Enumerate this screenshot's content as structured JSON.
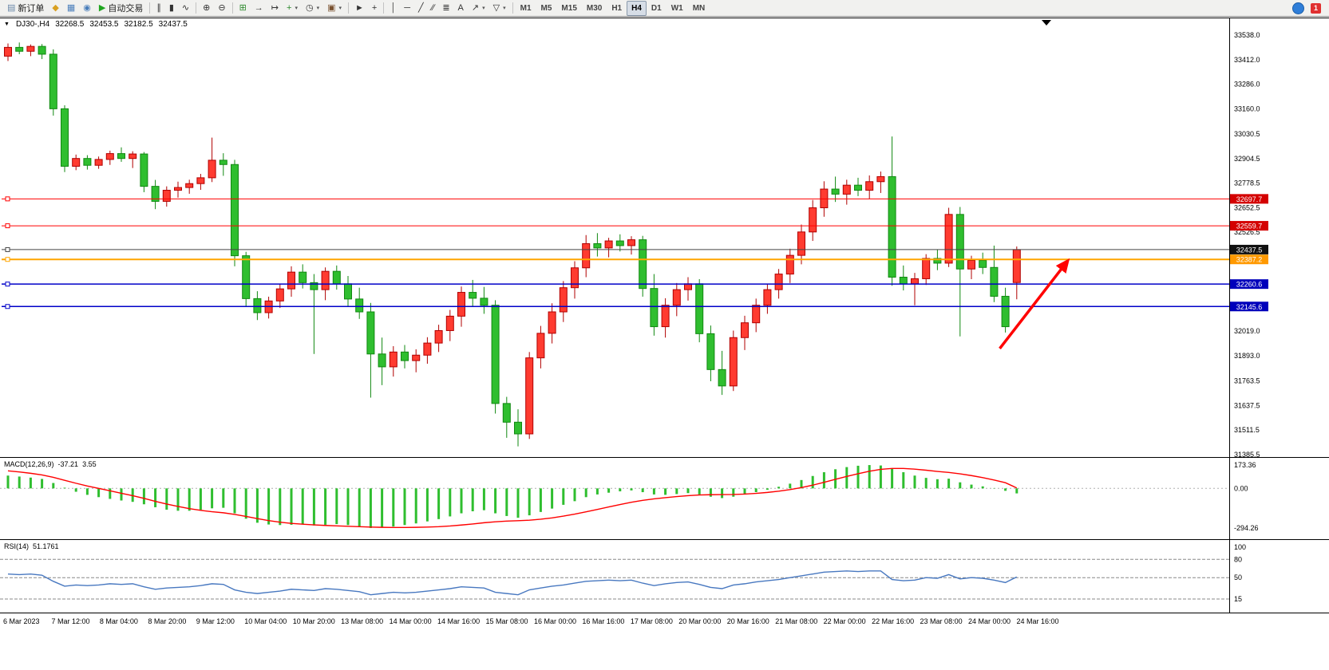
{
  "toolbar": {
    "new_order_label": "新订单",
    "auto_trading_label": "自动交易",
    "timeframes": [
      "M1",
      "M5",
      "M15",
      "M30",
      "H1",
      "H4",
      "D1",
      "W1",
      "MN"
    ],
    "active_timeframe": "H4",
    "notification_count": "1",
    "icons": {
      "dropdown": "▾"
    },
    "buttons": [
      {
        "type": "button",
        "name": "new-order-button",
        "glyph": "▤",
        "color": "#6a87a8",
        "label": "新订单"
      },
      {
        "type": "icon",
        "name": "market-watch-button",
        "glyph": "◆",
        "color": "#d9a021"
      },
      {
        "type": "icon",
        "name": "chart-window-button",
        "glyph": "▦",
        "color": "#4a7ebb"
      },
      {
        "type": "icon",
        "name": "profiles-button",
        "glyph": "◉",
        "color": "#4a7ebb"
      },
      {
        "type": "button",
        "name": "auto-trading-button",
        "glyph": "▶",
        "color": "#1fa51f",
        "label": "自动交易"
      },
      {
        "type": "sep"
      },
      {
        "type": "icon",
        "name": "bar-chart-button",
        "glyph": "∥",
        "color": "#333333"
      },
      {
        "type": "icon",
        "name": "candlestick-chart-button",
        "glyph": "▮",
        "color": "#333333"
      },
      {
        "type": "icon",
        "name": "line-chart-button",
        "glyph": "∿",
        "color": "#333333"
      },
      {
        "type": "sep"
      },
      {
        "type": "icon",
        "name": "zoom-in-button",
        "glyph": "⊕",
        "color": "#333333"
      },
      {
        "type": "icon",
        "name": "zoom-out-button",
        "glyph": "⊖",
        "color": "#333333"
      },
      {
        "type": "sep"
      },
      {
        "type": "icon",
        "name": "tile-windows-button",
        "glyph": "⊞",
        "color": "#2e8b2e"
      },
      {
        "type": "icon",
        "name": "auto-scroll-button",
        "glyph": "→",
        "color": "#333333"
      },
      {
        "type": "icon",
        "name": "chart-shift-button",
        "glyph": "↦",
        "color": "#333333"
      },
      {
        "type": "icon",
        "name": "indicators-button",
        "glyph": "+",
        "color": "#2e8b2e",
        "dropdown": true
      },
      {
        "type": "icon",
        "name": "periods-button",
        "glyph": "◷",
        "color": "#333333",
        "dropdown": true
      },
      {
        "type": "icon",
        "name": "templates-button",
        "glyph": "▣",
        "color": "#7a5230",
        "dropdown": true
      },
      {
        "type": "sep"
      },
      {
        "type": "icon",
        "name": "cursor-button",
        "glyph": "►",
        "color": "#333333"
      },
      {
        "type": "icon",
        "name": "crosshair-button",
        "glyph": "+",
        "color": "#333333"
      },
      {
        "type": "sep"
      },
      {
        "type": "icon",
        "name": "vertical-line-button",
        "glyph": "│",
        "color": "#333333"
      },
      {
        "type": "icon",
        "name": "horizontal-line-button",
        "glyph": "─",
        "color": "#333333"
      },
      {
        "type": "icon",
        "name": "trendline-button",
        "glyph": "╱",
        "color": "#333333"
      },
      {
        "type": "icon",
        "name": "channel-button",
        "glyph": "∕∕",
        "color": "#333333"
      },
      {
        "type": "icon",
        "name": "fibonacci-button",
        "glyph": "≣",
        "color": "#333333"
      },
      {
        "type": "icon",
        "name": "text-button",
        "glyph": "A",
        "color": "#333333"
      },
      {
        "type": "icon",
        "name": "arrows-button",
        "glyph": "↗",
        "color": "#333333",
        "dropdown": true
      },
      {
        "type": "icon",
        "name": "shapes-button",
        "glyph": "▽",
        "color": "#333333",
        "dropdown": true
      },
      {
        "type": "sep"
      }
    ]
  },
  "chart": {
    "symbol": "DJ30-,H4",
    "open": "32268.5",
    "high": "32453.5",
    "low": "32182.5",
    "close": "32437.5",
    "macd_label": "MACD(12,26,9)",
    "macd_main": "-37.21",
    "macd_signal_value": "3.55",
    "rsi_label": "RSI(14)",
    "rsi_value": "51.1761"
  },
  "chart_data": {
    "type": "candlestick",
    "symbol": "DJ30-",
    "timeframe": "H4",
    "price_range": {
      "top": 33538.0,
      "bottom": 31385.5
    },
    "colors": {
      "up_fill": "#ff3b30",
      "up_border": "#b00000",
      "down_fill": "#2fbe2f",
      "down_border": "#118811",
      "macd_hist": "#2fbe2f",
      "macd_signal": "#ff0000",
      "rsi_line": "#4878c0"
    },
    "y_ticks": [
      {
        "label": "33538.0",
        "value": 33538.0
      },
      {
        "label": "33412.0",
        "value": 33412.0
      },
      {
        "label": "33286.0",
        "value": 33286.0
      },
      {
        "label": "33160.0",
        "value": 33160.0
      },
      {
        "label": "33030.5",
        "value": 33030.5
      },
      {
        "label": "32904.5",
        "value": 32904.5
      },
      {
        "label": "32778.5",
        "value": 32778.5
      },
      {
        "label": "32652.5",
        "value": 32652.5
      },
      {
        "label": "32526.5",
        "value": 32526.5
      },
      {
        "label": "32019.0",
        "value": 32019.0
      },
      {
        "label": "31893.0",
        "value": 31893.0
      },
      {
        "label": "31763.5",
        "value": 31763.5
      },
      {
        "label": "31637.5",
        "value": 31637.5
      },
      {
        "label": "31511.5",
        "value": 31511.5
      },
      {
        "label": "31385.5",
        "value": 31385.5
      }
    ],
    "price_levels": [
      {
        "price": 32697.7,
        "label": "32697.7",
        "color": "#ff0000",
        "badge": "#d40000",
        "width": 1
      },
      {
        "price": 32559.7,
        "label": "32559.7",
        "color": "#ff0000",
        "badge": "#d40000",
        "width": 1
      },
      {
        "price": 32437.5,
        "label": "32437.5",
        "color": "#444444",
        "badge": "#111111",
        "width": 1
      },
      {
        "price": 32387.2,
        "label": "32387.2",
        "color": "#ffa500",
        "badge": "#ff9900",
        "width": 2
      },
      {
        "price": 32260.6,
        "label": "32260.6",
        "color": "#0000c8",
        "badge": "#0000bb",
        "width": 1.5
      },
      {
        "price": 32145.6,
        "label": "32145.6",
        "color": "#0000c8",
        "badge": "#0000bb",
        "width": 1.5
      }
    ],
    "x_labels": [
      "6 Mar 2023",
      "7 Mar 12:00",
      "8 Mar 04:00",
      "8 Mar 20:00",
      "9 Mar 12:00",
      "10 Mar 04:00",
      "10 Mar 20:00",
      "13 Mar 08:00",
      "14 Mar 00:00",
      "14 Mar 16:00",
      "15 Mar 08:00",
      "16 Mar 00:00",
      "16 Mar 16:00",
      "17 Mar 08:00",
      "20 Mar 00:00",
      "20 Mar 16:00",
      "21 Mar 08:00",
      "22 Mar 00:00",
      "22 Mar 16:00",
      "23 Mar 08:00",
      "24 Mar 00:00",
      "24 Mar 16:00"
    ],
    "candles": [
      [
        33430,
        33495,
        33405,
        33475
      ],
      [
        33475,
        33500,
        33440,
        33455
      ],
      [
        33455,
        33490,
        33430,
        33480
      ],
      [
        33480,
        33492,
        33415,
        33440
      ],
      [
        33440,
        33465,
        33125,
        33160
      ],
      [
        33160,
        33178,
        32835,
        32865
      ],
      [
        32865,
        32925,
        32845,
        32905
      ],
      [
        32905,
        32922,
        32848,
        32870
      ],
      [
        32870,
        32915,
        32852,
        32900
      ],
      [
        32900,
        32945,
        32872,
        32930
      ],
      [
        32930,
        32962,
        32888,
        32905
      ],
      [
        32905,
        32942,
        32856,
        32928
      ],
      [
        32928,
        32938,
        32732,
        32762
      ],
      [
        32762,
        32795,
        32645,
        32685
      ],
      [
        32685,
        32762,
        32658,
        32742
      ],
      [
        32742,
        32786,
        32704,
        32756
      ],
      [
        32756,
        32796,
        32724,
        32776
      ],
      [
        32776,
        32826,
        32744,
        32806
      ],
      [
        32806,
        33012,
        32784,
        32896
      ],
      [
        32896,
        32932,
        32816,
        32874
      ],
      [
        32874,
        32898,
        32352,
        32406
      ],
      [
        32406,
        32426,
        32148,
        32186
      ],
      [
        32186,
        32224,
        32076,
        32114
      ],
      [
        32114,
        32196,
        32084,
        32174
      ],
      [
        32174,
        32262,
        32138,
        32236
      ],
      [
        32236,
        32352,
        32196,
        32322
      ],
      [
        32322,
        32362,
        32238,
        32268
      ],
      [
        32268,
        32312,
        31902,
        32232
      ],
      [
        32232,
        32346,
        32178,
        32326
      ],
      [
        32326,
        32356,
        32232,
        32262
      ],
      [
        32262,
        32302,
        32148,
        32184
      ],
      [
        32184,
        32242,
        32082,
        32118
      ],
      [
        32118,
        32164,
        31678,
        31902
      ],
      [
        31902,
        31986,
        31742,
        31836
      ],
      [
        31836,
        31942,
        31786,
        31912
      ],
      [
        31912,
        31948,
        31828,
        31868
      ],
      [
        31868,
        31926,
        31808,
        31896
      ],
      [
        31896,
        31988,
        31852,
        31958
      ],
      [
        31958,
        32052,
        31912,
        32022
      ],
      [
        32022,
        32128,
        31968,
        32096
      ],
      [
        32096,
        32248,
        32042,
        32218
      ],
      [
        32218,
        32282,
        32146,
        32188
      ],
      [
        32188,
        32246,
        32108,
        32152
      ],
      [
        32152,
        32178,
        31596,
        31648
      ],
      [
        31648,
        31682,
        31472,
        31552
      ],
      [
        31552,
        31618,
        31428,
        31492
      ],
      [
        31492,
        31912,
        31466,
        31882
      ],
      [
        31882,
        32046,
        31828,
        32008
      ],
      [
        32008,
        32162,
        31956,
        32118
      ],
      [
        32118,
        32276,
        32066,
        32242
      ],
      [
        32242,
        32378,
        32186,
        32344
      ],
      [
        32344,
        32512,
        32296,
        32468
      ],
      [
        32468,
        32522,
        32402,
        32446
      ],
      [
        32446,
        32498,
        32398,
        32482
      ],
      [
        32482,
        32516,
        32428,
        32458
      ],
      [
        32458,
        32506,
        32412,
        32488
      ],
      [
        32488,
        32508,
        32196,
        32238
      ],
      [
        32238,
        32312,
        31996,
        32042
      ],
      [
        32042,
        32188,
        31986,
        32152
      ],
      [
        32152,
        32266,
        32096,
        32232
      ],
      [
        32232,
        32296,
        32176,
        32262
      ],
      [
        32262,
        32286,
        31962,
        32006
      ],
      [
        32006,
        32048,
        31762,
        31822
      ],
      [
        31822,
        31918,
        31692,
        31738
      ],
      [
        31738,
        32022,
        31712,
        31986
      ],
      [
        31986,
        32098,
        31922,
        32062
      ],
      [
        32062,
        32186,
        32014,
        32152
      ],
      [
        32152,
        32262,
        32108,
        32232
      ],
      [
        32232,
        32338,
        32186,
        32312
      ],
      [
        32312,
        32442,
        32266,
        32408
      ],
      [
        32408,
        32566,
        32362,
        32528
      ],
      [
        32528,
        32692,
        32482,
        32652
      ],
      [
        32652,
        32788,
        32606,
        32748
      ],
      [
        32748,
        32812,
        32682,
        32722
      ],
      [
        32722,
        32796,
        32668,
        32768
      ],
      [
        32768,
        32806,
        32712,
        32742
      ],
      [
        32742,
        32818,
        32698,
        32786
      ],
      [
        32786,
        32838,
        32728,
        32812
      ],
      [
        32812,
        33018,
        32252,
        32296
      ],
      [
        32296,
        32356,
        32228,
        32262
      ],
      [
        32262,
        32318,
        32152,
        32288
      ],
      [
        32288,
        32414,
        32256,
        32392
      ],
      [
        32392,
        32438,
        32332,
        32368
      ],
      [
        32368,
        32652,
        32348,
        32618
      ],
      [
        32618,
        32656,
        31992,
        32338
      ],
      [
        32338,
        32406,
        32286,
        32382
      ],
      [
        32382,
        32422,
        32312,
        32346
      ],
      [
        32346,
        32458,
        32168,
        32198
      ],
      [
        32198,
        32242,
        32012,
        32042
      ],
      [
        32268.5,
        32453.5,
        32182.5,
        32437.5
      ]
    ],
    "macd": {
      "axis": [
        173.36,
        0,
        -294.26
      ],
      "axis_labels": [
        "173.36",
        "0.00",
        "-294.26"
      ],
      "histogram": [
        95,
        88,
        80,
        70,
        40,
        5,
        -25,
        -48,
        -65,
        -78,
        -90,
        -100,
        -118,
        -140,
        -158,
        -166,
        -166,
        -160,
        -148,
        -144,
        -185,
        -225,
        -255,
        -268,
        -272,
        -270,
        -268,
        -275,
        -270,
        -265,
        -272,
        -282,
        -294,
        -290,
        -283,
        -272,
        -260,
        -245,
        -228,
        -208,
        -185,
        -170,
        -162,
        -185,
        -205,
        -218,
        -200,
        -175,
        -150,
        -122,
        -95,
        -65,
        -45,
        -32,
        -22,
        -15,
        -28,
        -45,
        -48,
        -42,
        -35,
        -45,
        -62,
        -72,
        -62,
        -45,
        -28,
        -10,
        12,
        35,
        62,
        92,
        120,
        142,
        158,
        168,
        173,
        170,
        148,
        120,
        95,
        78,
        68,
        72,
        45,
        28,
        15,
        2,
        -18,
        -37.21
      ],
      "signal": [
        130,
        122,
        112,
        100,
        82,
        60,
        38,
        18,
        0,
        -18,
        -36,
        -54,
        -74,
        -96,
        -116,
        -134,
        -150,
        -163,
        -173,
        -181,
        -193,
        -208,
        -224,
        -239,
        -251,
        -260,
        -266,
        -271,
        -275,
        -278,
        -281,
        -284,
        -287,
        -289,
        -290,
        -290,
        -289,
        -287,
        -284,
        -279,
        -272,
        -264,
        -255,
        -248,
        -243,
        -240,
        -236,
        -229,
        -219,
        -206,
        -191,
        -174,
        -156,
        -138,
        -120,
        -103,
        -89,
        -78,
        -69,
        -61,
        -54,
        -49,
        -47,
        -46,
        -45,
        -42,
        -37,
        -30,
        -21,
        -9,
        6,
        24,
        45,
        67,
        89,
        109,
        127,
        141,
        148,
        148,
        143,
        135,
        126,
        118,
        108,
        95,
        80,
        62,
        42,
        3.55
      ]
    },
    "rsi": {
      "levels": [
        100,
        80,
        50,
        15
      ],
      "level_labels": [
        "100",
        "80",
        "50",
        "15"
      ],
      "values": [
        56,
        55,
        56,
        54,
        44,
        36,
        38,
        37,
        38,
        40,
        39,
        40,
        35,
        31,
        33,
        34,
        35,
        37,
        40,
        39,
        30,
        26,
        24,
        26,
        28,
        31,
        30,
        29,
        32,
        31,
        29,
        27,
        22,
        24,
        26,
        25,
        26,
        28,
        30,
        32,
        35,
        34,
        33,
        26,
        24,
        22,
        30,
        33,
        36,
        38,
        41,
        44,
        45,
        46,
        45,
        46,
        41,
        37,
        40,
        42,
        43,
        39,
        34,
        32,
        38,
        40,
        43,
        45,
        47,
        50,
        53,
        56,
        59,
        60,
        61,
        60,
        61,
        61,
        47,
        45,
        46,
        50,
        49,
        55,
        48,
        50,
        49,
        46,
        42,
        51.18
      ]
    },
    "annotations": {
      "arrow": {
        "x1_index": 87.5,
        "y1_price": 31930,
        "x2_index": 93.5,
        "y2_price": 32380,
        "color": "#ff0000"
      }
    }
  }
}
